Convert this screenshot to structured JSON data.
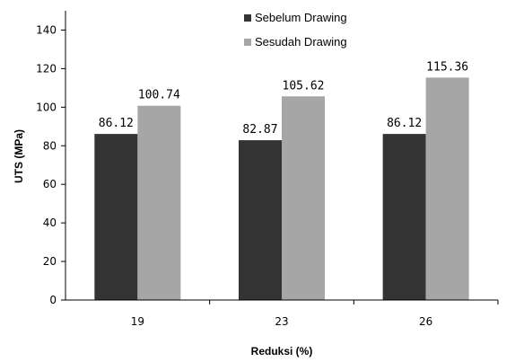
{
  "chart_data": {
    "type": "bar",
    "categories": [
      "19",
      "23",
      "26"
    ],
    "series": [
      {
        "name": "Sebelum Drawing",
        "values": [
          86.12,
          82.87,
          86.12
        ],
        "labels": [
          "86.12",
          "82.87",
          "86.12"
        ],
        "color": "#333333"
      },
      {
        "name": "Sesudah Drawing",
        "values": [
          100.74,
          105.62,
          115.36
        ],
        "labels": [
          "100.74",
          "105.62",
          "115.36"
        ],
        "color": "#a6a6a6"
      }
    ],
    "title": "",
    "xlabel": "Reduksi (%)",
    "ylabel": "UTS (MPa)",
    "ylim": [
      0,
      150
    ],
    "yticks": [
      "0",
      "20",
      "40",
      "60",
      "80",
      "100",
      "120",
      "140"
    ],
    "grid": false,
    "legend_position": "top-center"
  }
}
